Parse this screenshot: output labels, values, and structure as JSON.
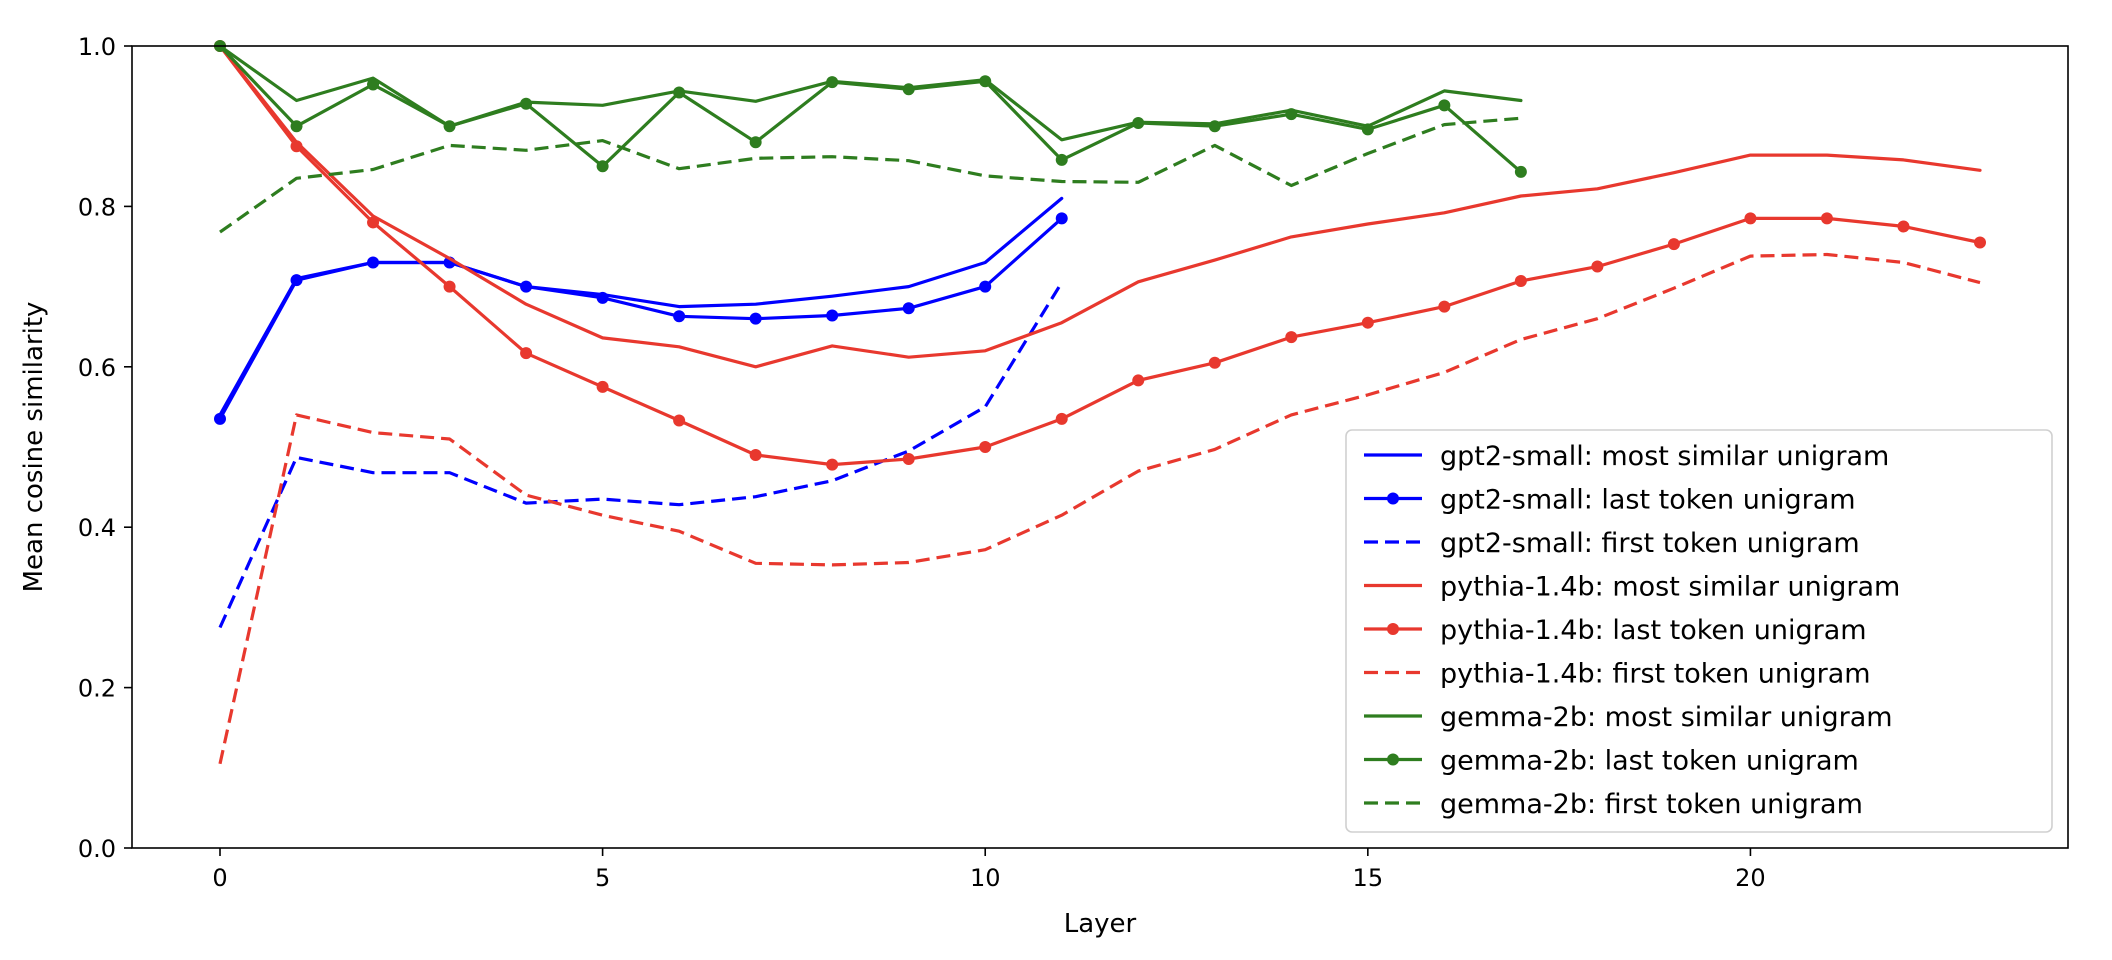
{
  "chart_data": {
    "type": "line",
    "title": "",
    "xlabel": "Layer",
    "ylabel": "Mean cosine similarity",
    "xlim": [
      -1.15,
      24.15
    ],
    "ylim": [
      0.0,
      1.0
    ],
    "xticks": [
      0,
      5,
      10,
      15,
      20
    ],
    "yticks": [
      0.0,
      0.2,
      0.4,
      0.6,
      0.8,
      1.0
    ],
    "xtick_labels": [
      "0",
      "5",
      "10",
      "15",
      "20"
    ],
    "ytick_labels": [
      "0.0",
      "0.2",
      "0.4",
      "0.6",
      "0.8",
      "1.0"
    ],
    "grid": false,
    "legend_position": "lower right",
    "series": [
      {
        "name": "gpt2-small: most similar unigram",
        "color": "#0000ff",
        "style": "solid",
        "marker": false,
        "x": [
          0,
          1,
          2,
          3,
          4,
          5,
          6,
          7,
          8,
          9,
          10,
          11
        ],
        "y": [
          0.54,
          0.71,
          0.73,
          0.73,
          0.7,
          0.69,
          0.675,
          0.678,
          0.688,
          0.7,
          0.73,
          0.81
        ]
      },
      {
        "name": "gpt2-small: last token unigram",
        "color": "#0000ff",
        "style": "solid",
        "marker": true,
        "x": [
          0,
          1,
          2,
          3,
          4,
          5,
          6,
          7,
          8,
          9,
          10,
          11
        ],
        "y": [
          0.535,
          0.708,
          0.73,
          0.73,
          0.7,
          0.686,
          0.663,
          0.66,
          0.664,
          0.673,
          0.7,
          0.785
        ]
      },
      {
        "name": "gpt2-small: first token unigram",
        "color": "#0000ff",
        "style": "dashed",
        "marker": false,
        "x": [
          0,
          1,
          2,
          3,
          4,
          5,
          6,
          7,
          8,
          9,
          10,
          11
        ],
        "y": [
          0.275,
          0.487,
          0.468,
          0.468,
          0.43,
          0.435,
          0.428,
          0.438,
          0.458,
          0.495,
          0.55,
          0.705
        ]
      },
      {
        "name": "pythia-1.4b: most similar unigram",
        "color": "#e8382e",
        "style": "solid",
        "marker": false,
        "x": [
          0,
          1,
          2,
          3,
          4,
          5,
          6,
          7,
          8,
          9,
          10,
          11,
          12,
          13,
          14,
          15,
          16,
          17,
          18,
          19,
          20,
          21,
          22,
          23
        ],
        "y": [
          1.0,
          0.88,
          0.788,
          0.735,
          0.678,
          0.636,
          0.625,
          0.6,
          0.626,
          0.612,
          0.62,
          0.655,
          0.706,
          0.733,
          0.762,
          0.778,
          0.792,
          0.813,
          0.822,
          0.842,
          0.864,
          0.864,
          0.858,
          0.845
        ]
      },
      {
        "name": "pythia-1.4b: last token unigram",
        "color": "#e8382e",
        "style": "solid",
        "marker": true,
        "x": [
          0,
          1,
          2,
          3,
          4,
          5,
          6,
          7,
          8,
          9,
          10,
          11,
          12,
          13,
          14,
          15,
          16,
          17,
          18,
          19,
          20,
          21,
          22,
          23
        ],
        "y": [
          1.0,
          0.875,
          0.78,
          0.7,
          0.617,
          0.575,
          0.533,
          0.49,
          0.478,
          0.485,
          0.5,
          0.535,
          0.583,
          0.605,
          0.637,
          0.655,
          0.675,
          0.707,
          0.725,
          0.753,
          0.785,
          0.785,
          0.775,
          0.755
        ]
      },
      {
        "name": "pythia-1.4b: first token unigram",
        "color": "#e8382e",
        "style": "dashed",
        "marker": false,
        "x": [
          0,
          1,
          2,
          3,
          4,
          5,
          6,
          7,
          8,
          9,
          10,
          11,
          12,
          13,
          14,
          15,
          16,
          17,
          18,
          19,
          20,
          21,
          22,
          23
        ],
        "y": [
          0.105,
          0.54,
          0.518,
          0.51,
          0.44,
          0.415,
          0.395,
          0.355,
          0.353,
          0.356,
          0.372,
          0.415,
          0.47,
          0.497,
          0.54,
          0.565,
          0.593,
          0.634,
          0.66,
          0.698,
          0.738,
          0.74,
          0.73,
          0.705
        ]
      },
      {
        "name": "gemma-2b: most similar unigram",
        "color": "#2e7d1f",
        "style": "solid",
        "marker": false,
        "x": [
          0,
          1,
          2,
          3,
          4,
          5,
          6,
          7,
          8,
          9,
          10,
          11,
          12,
          13,
          14,
          15,
          16,
          17
        ],
        "y": [
          1.0,
          0.932,
          0.96,
          0.9,
          0.93,
          0.926,
          0.944,
          0.931,
          0.956,
          0.948,
          0.958,
          0.883,
          0.905,
          0.903,
          0.92,
          0.9,
          0.944,
          0.932
        ]
      },
      {
        "name": "gemma-2b: last token unigram",
        "color": "#2e7d1f",
        "style": "solid",
        "marker": true,
        "x": [
          0,
          1,
          2,
          3,
          4,
          5,
          6,
          7,
          8,
          9,
          10,
          11,
          12,
          13,
          14,
          15,
          16,
          17
        ],
        "y": [
          1.0,
          0.9,
          0.952,
          0.9,
          0.928,
          0.85,
          0.942,
          0.88,
          0.955,
          0.946,
          0.956,
          0.858,
          0.904,
          0.9,
          0.915,
          0.896,
          0.926,
          0.843
        ]
      },
      {
        "name": "gemma-2b: first token unigram",
        "color": "#2e7d1f",
        "style": "dashed",
        "marker": false,
        "x": [
          0,
          1,
          2,
          3,
          4,
          5,
          6,
          7,
          8,
          9,
          10,
          11,
          12,
          13,
          14,
          15,
          16,
          17
        ],
        "y": [
          0.768,
          0.835,
          0.846,
          0.876,
          0.87,
          0.882,
          0.847,
          0.86,
          0.862,
          0.857,
          0.838,
          0.831,
          0.83,
          0.876,
          0.826,
          0.866,
          0.902,
          0.91
        ]
      }
    ]
  }
}
